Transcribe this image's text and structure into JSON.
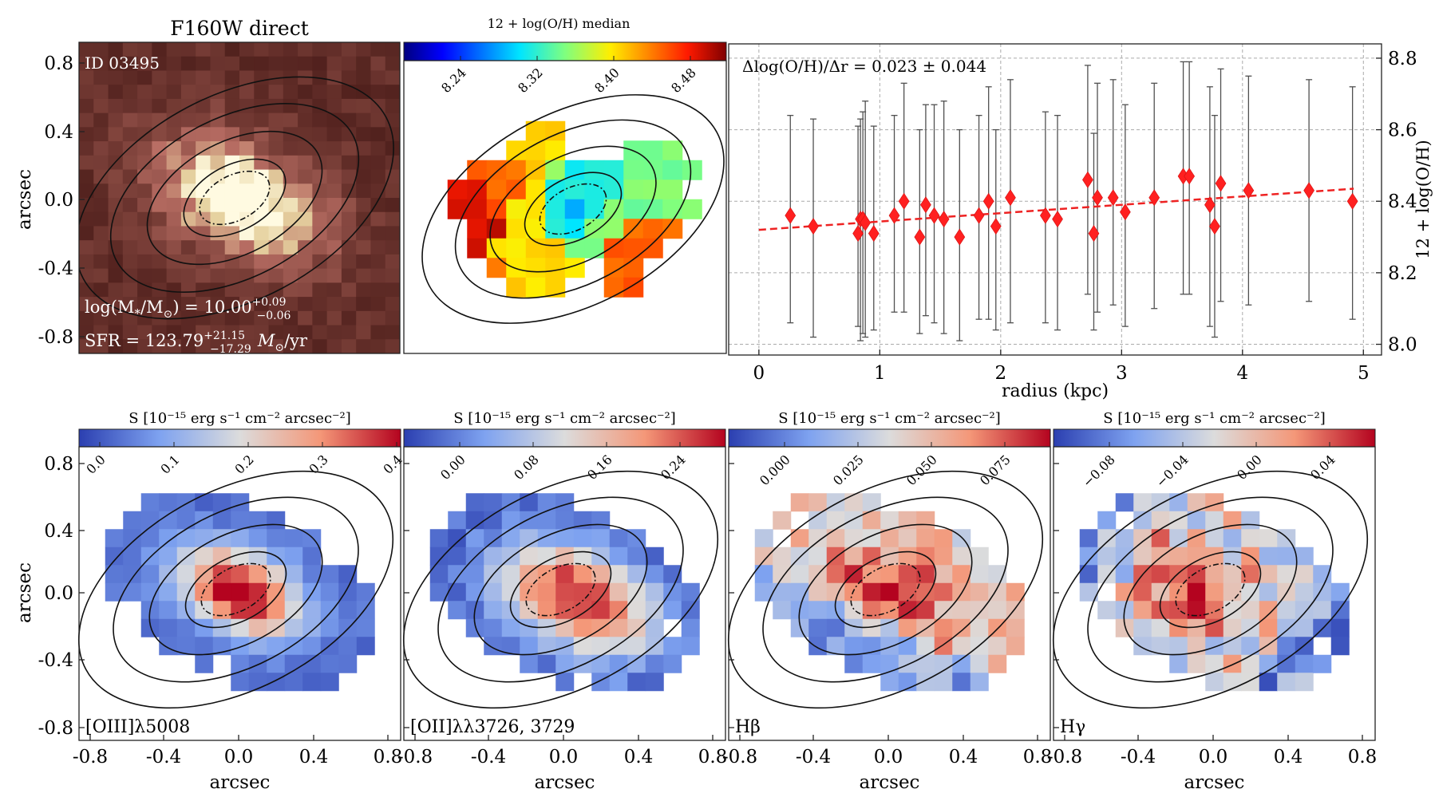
{
  "top": {
    "direct": {
      "title": "F160W direct",
      "id_label": "ID 03495",
      "ylabel": "arcsec",
      "y_ticks": [
        "0.8",
        "0.4",
        "0.0",
        "-0.4",
        "-0.8"
      ],
      "mass_prefix": "log(M",
      "mass_star": "*",
      "mass_mid": "/M",
      "mass_sun": "⊙",
      "mass_eq": ") = 10.00",
      "mass_up": "+0.09",
      "mass_dn": "−0.06",
      "sfr_prefix": "SFR = 123.79",
      "sfr_up": "+21.15",
      "sfr_dn": "−17.29",
      "sfr_unit": "M",
      "sfr_sun": "⊙",
      "sfr_tail": "/yr"
    },
    "metal_map": {
      "colorbar_label": "12 + log(O/H) median",
      "colorbar_ticks": [
        "8.24",
        "8.32",
        "8.40",
        "8.48"
      ]
    },
    "gradient_label": "Δlog(O/H)/Δr = 0.023 ± 0.044"
  },
  "chart_data": [
    {
      "type": "scatter",
      "title": "",
      "xlabel": "radius (kpc)",
      "ylabel": "12 + log(O/H)",
      "xlim": [
        -0.25,
        5.15
      ],
      "ylim": [
        7.97,
        8.84
      ],
      "x_ticks": [
        "0",
        "1",
        "2",
        "3",
        "4",
        "5"
      ],
      "y_ticks": [
        "8.0",
        "8.2",
        "8.4",
        "8.6",
        "8.8"
      ],
      "grid": true,
      "y_axis_side": "right",
      "series": [
        {
          "points": [
            {
              "x": 0.26,
              "y": 8.36,
              "ylo": 8.06,
              "yhi": 8.64
            },
            {
              "x": 0.45,
              "y": 8.33,
              "ylo": 8.02,
              "yhi": 8.63
            },
            {
              "x": 0.82,
              "y": 8.31,
              "ylo": 8.05,
              "yhi": 8.61
            },
            {
              "x": 0.84,
              "y": 8.35,
              "ylo": 8.01,
              "yhi": 8.63
            },
            {
              "x": 0.86,
              "y": 8.35,
              "ylo": 8.03,
              "yhi": 8.65
            },
            {
              "x": 0.88,
              "y": 8.34,
              "ylo": 8.02,
              "yhi": 8.68
            },
            {
              "x": 0.95,
              "y": 8.31,
              "ylo": 8.04,
              "yhi": 8.61
            },
            {
              "x": 1.12,
              "y": 8.36,
              "ylo": 8.09,
              "yhi": 8.64
            },
            {
              "x": 1.2,
              "y": 8.4,
              "ylo": 8.09,
              "yhi": 8.73
            },
            {
              "x": 1.33,
              "y": 8.3,
              "ylo": 8.03,
              "yhi": 8.6
            },
            {
              "x": 1.38,
              "y": 8.39,
              "ylo": 8.08,
              "yhi": 8.67
            },
            {
              "x": 1.45,
              "y": 8.36,
              "ylo": 8.06,
              "yhi": 8.67
            },
            {
              "x": 1.53,
              "y": 8.35,
              "ylo": 8.03,
              "yhi": 8.68
            },
            {
              "x": 1.66,
              "y": 8.3,
              "ylo": 8.01,
              "yhi": 8.6
            },
            {
              "x": 1.82,
              "y": 8.36,
              "ylo": 8.07,
              "yhi": 8.64
            },
            {
              "x": 1.9,
              "y": 8.4,
              "ylo": 8.07,
              "yhi": 8.72
            },
            {
              "x": 1.96,
              "y": 8.33,
              "ylo": 8.04,
              "yhi": 8.6
            },
            {
              "x": 2.08,
              "y": 8.41,
              "ylo": 8.06,
              "yhi": 8.74
            },
            {
              "x": 2.37,
              "y": 8.36,
              "ylo": 8.06,
              "yhi": 8.65
            },
            {
              "x": 2.47,
              "y": 8.35,
              "ylo": 8.04,
              "yhi": 8.64
            },
            {
              "x": 2.72,
              "y": 8.46,
              "ylo": 8.14,
              "yhi": 8.78
            },
            {
              "x": 2.77,
              "y": 8.31,
              "ylo": 8.04,
              "yhi": 8.59
            },
            {
              "x": 2.8,
              "y": 8.41,
              "ylo": 8.09,
              "yhi": 8.73
            },
            {
              "x": 2.93,
              "y": 8.41,
              "ylo": 8.11,
              "yhi": 8.74
            },
            {
              "x": 3.03,
              "y": 8.37,
              "ylo": 8.05,
              "yhi": 8.67
            },
            {
              "x": 3.27,
              "y": 8.41,
              "ylo": 8.1,
              "yhi": 8.73
            },
            {
              "x": 3.51,
              "y": 8.47,
              "ylo": 8.14,
              "yhi": 8.79
            },
            {
              "x": 3.56,
              "y": 8.47,
              "ylo": 8.14,
              "yhi": 8.79
            },
            {
              "x": 3.73,
              "y": 8.39,
              "ylo": 8.05,
              "yhi": 8.72
            },
            {
              "x": 3.77,
              "y": 8.33,
              "ylo": 8.02,
              "yhi": 8.64
            },
            {
              "x": 3.82,
              "y": 8.45,
              "ylo": 8.12,
              "yhi": 8.77
            },
            {
              "x": 4.05,
              "y": 8.43,
              "ylo": 8.11,
              "yhi": 8.75
            },
            {
              "x": 4.55,
              "y": 8.43,
              "ylo": 8.12,
              "yhi": 8.74
            },
            {
              "x": 4.91,
              "y": 8.4,
              "ylo": 8.07,
              "yhi": 8.72
            }
          ]
        }
      ],
      "fit": {
        "x": [
          0,
          4.92
        ],
        "y": [
          8.32,
          8.435
        ]
      },
      "colors": {
        "points": "#ff2020",
        "errorbar": "#505050",
        "fit": "#ee2222"
      }
    }
  ],
  "bottom": {
    "xlabel": "arcsec",
    "ylabel": "arcsec",
    "x_ticks": [
      "-0.8",
      "-0.4",
      "0.0",
      "0.4",
      "0.8"
    ],
    "y_ticks": [
      "0.8",
      "0.4",
      "0.0",
      "-0.4",
      "-0.8"
    ],
    "colorbar_label": "S [10⁻¹⁵ erg s⁻¹ cm⁻² arcsec⁻²]",
    "panels": [
      {
        "line": "[OIII]λ5008",
        "ticks": [
          "0.0",
          "0.1",
          "0.2",
          "0.3",
          "0.4"
        ]
      },
      {
        "line": "[OII]λλ3726, 3729",
        "ticks": [
          "0.00",
          "0.08",
          "0.16",
          "0.24"
        ]
      },
      {
        "line": "Hβ",
        "ticks": [
          "0.000",
          "0.025",
          "0.050",
          "0.075"
        ]
      },
      {
        "line": "Hγ",
        "ticks": [
          "−0.08",
          "−0.04",
          "0.00",
          "0.04"
        ]
      }
    ]
  }
}
